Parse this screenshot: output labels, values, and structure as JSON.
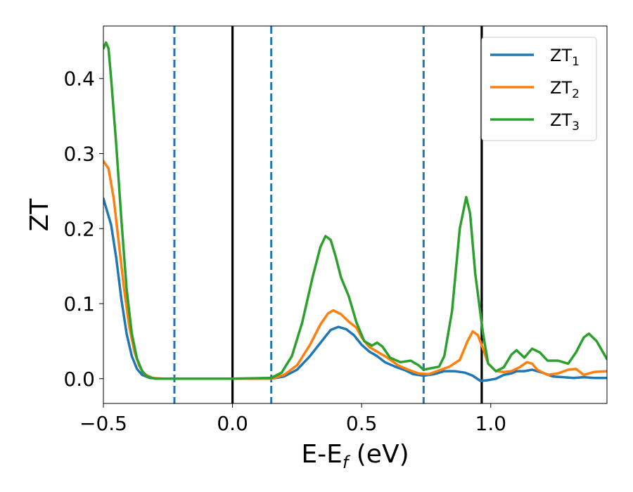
{
  "chart_data": {
    "type": "line",
    "title": "",
    "xlabel_main": "E-E",
    "xlabel_sub": "f",
    "xlabel_unit": " (eV)",
    "ylabel": "ZT",
    "xlim": [
      -0.5,
      1.45
    ],
    "ylim": [
      -0.033,
      0.47
    ],
    "x_ticks": [
      -0.5,
      0.0,
      0.5,
      1.0
    ],
    "x_tick_labels": [
      "−0.5",
      "0.0",
      "0.5",
      "1.0"
    ],
    "y_ticks": [
      0.0,
      0.1,
      0.2,
      0.3,
      0.4
    ],
    "y_tick_labels": [
      "0.0",
      "0.1",
      "0.2",
      "0.3",
      "0.4"
    ],
    "grid": false,
    "legend_position": "top-right",
    "vertical_lines": [
      {
        "x": -0.225,
        "style": "dashed",
        "color": "#1f77b4"
      },
      {
        "x": 0.0,
        "style": "solid",
        "color": "#000000"
      },
      {
        "x": 0.15,
        "style": "dashed",
        "color": "#1f77b4"
      },
      {
        "x": 0.74,
        "style": "dashed",
        "color": "#1f77b4"
      },
      {
        "x": 0.965,
        "style": "solid",
        "color": "#000000"
      }
    ],
    "series": [
      {
        "name_main": "ZT",
        "name_sub": "1",
        "color": "#1f77b4",
        "points": [
          [
            -0.5,
            0.24
          ],
          [
            -0.47,
            0.205
          ],
          [
            -0.45,
            0.16
          ],
          [
            -0.43,
            0.105
          ],
          [
            -0.41,
            0.06
          ],
          [
            -0.39,
            0.03
          ],
          [
            -0.37,
            0.013
          ],
          [
            -0.35,
            0.005
          ],
          [
            -0.32,
            0.001
          ],
          [
            -0.28,
            0.0
          ],
          [
            0.0,
            0.0
          ],
          [
            0.15,
            0.0
          ],
          [
            0.2,
            0.003
          ],
          [
            0.25,
            0.012
          ],
          [
            0.3,
            0.03
          ],
          [
            0.35,
            0.052
          ],
          [
            0.38,
            0.065
          ],
          [
            0.41,
            0.069
          ],
          [
            0.44,
            0.066
          ],
          [
            0.47,
            0.058
          ],
          [
            0.5,
            0.045
          ],
          [
            0.53,
            0.036
          ],
          [
            0.56,
            0.03
          ],
          [
            0.59,
            0.022
          ],
          [
            0.63,
            0.016
          ],
          [
            0.67,
            0.011
          ],
          [
            0.7,
            0.006
          ],
          [
            0.74,
            0.004
          ],
          [
            0.78,
            0.006
          ],
          [
            0.82,
            0.01
          ],
          [
            0.86,
            0.01
          ],
          [
            0.9,
            0.008
          ],
          [
            0.93,
            0.004
          ],
          [
            0.96,
            -0.003
          ],
          [
            0.99,
            -0.002
          ],
          [
            1.02,
            0.0
          ],
          [
            1.05,
            0.005
          ],
          [
            1.08,
            0.007
          ],
          [
            1.1,
            0.01
          ],
          [
            1.13,
            0.01
          ],
          [
            1.16,
            0.012
          ],
          [
            1.2,
            0.008
          ],
          [
            1.24,
            0.003
          ],
          [
            1.28,
            0.002
          ],
          [
            1.32,
            0.001
          ],
          [
            1.36,
            0.002
          ],
          [
            1.4,
            0.001
          ],
          [
            1.45,
            0.001
          ]
        ]
      },
      {
        "name_main": "ZT",
        "name_sub": "2",
        "color": "#ff7f0e",
        "points": [
          [
            -0.5,
            0.29
          ],
          [
            -0.48,
            0.28
          ],
          [
            -0.46,
            0.24
          ],
          [
            -0.44,
            0.18
          ],
          [
            -0.42,
            0.12
          ],
          [
            -0.4,
            0.07
          ],
          [
            -0.38,
            0.036
          ],
          [
            -0.36,
            0.016
          ],
          [
            -0.34,
            0.006
          ],
          [
            -0.31,
            0.001
          ],
          [
            -0.27,
            0.0
          ],
          [
            0.0,
            0.0
          ],
          [
            0.15,
            0.0
          ],
          [
            0.2,
            0.005
          ],
          [
            0.25,
            0.018
          ],
          [
            0.3,
            0.045
          ],
          [
            0.34,
            0.072
          ],
          [
            0.37,
            0.087
          ],
          [
            0.39,
            0.091
          ],
          [
            0.42,
            0.086
          ],
          [
            0.45,
            0.076
          ],
          [
            0.48,
            0.068
          ],
          [
            0.5,
            0.055
          ],
          [
            0.53,
            0.042
          ],
          [
            0.56,
            0.036
          ],
          [
            0.6,
            0.028
          ],
          [
            0.64,
            0.018
          ],
          [
            0.68,
            0.012
          ],
          [
            0.72,
            0.007
          ],
          [
            0.76,
            0.006
          ],
          [
            0.8,
            0.011
          ],
          [
            0.84,
            0.016
          ],
          [
            0.88,
            0.025
          ],
          [
            0.91,
            0.05
          ],
          [
            0.93,
            0.063
          ],
          [
            0.95,
            0.058
          ],
          [
            0.97,
            0.04
          ],
          [
            0.99,
            0.02
          ],
          [
            1.02,
            0.01
          ],
          [
            1.05,
            0.009
          ],
          [
            1.08,
            0.01
          ],
          [
            1.11,
            0.015
          ],
          [
            1.14,
            0.022
          ],
          [
            1.16,
            0.02
          ],
          [
            1.18,
            0.012
          ],
          [
            1.22,
            0.005
          ],
          [
            1.26,
            0.007
          ],
          [
            1.3,
            0.012
          ],
          [
            1.33,
            0.013
          ],
          [
            1.36,
            0.005
          ],
          [
            1.4,
            0.009
          ],
          [
            1.45,
            0.01
          ]
        ]
      },
      {
        "name_main": "ZT",
        "name_sub": "3",
        "color": "#2ca02c",
        "points": [
          [
            -0.5,
            0.44
          ],
          [
            -0.49,
            0.448
          ],
          [
            -0.48,
            0.44
          ],
          [
            -0.47,
            0.4
          ],
          [
            -0.45,
            0.31
          ],
          [
            -0.43,
            0.21
          ],
          [
            -0.41,
            0.12
          ],
          [
            -0.39,
            0.06
          ],
          [
            -0.37,
            0.027
          ],
          [
            -0.35,
            0.01
          ],
          [
            -0.33,
            0.003
          ],
          [
            -0.3,
            0.0
          ],
          [
            0.0,
            0.0
          ],
          [
            0.15,
            0.001
          ],
          [
            0.19,
            0.008
          ],
          [
            0.23,
            0.03
          ],
          [
            0.27,
            0.075
          ],
          [
            0.31,
            0.135
          ],
          [
            0.34,
            0.175
          ],
          [
            0.36,
            0.19
          ],
          [
            0.38,
            0.185
          ],
          [
            0.4,
            0.162
          ],
          [
            0.42,
            0.135
          ],
          [
            0.45,
            0.11
          ],
          [
            0.48,
            0.075
          ],
          [
            0.51,
            0.05
          ],
          [
            0.54,
            0.044
          ],
          [
            0.56,
            0.048
          ],
          [
            0.58,
            0.043
          ],
          [
            0.61,
            0.028
          ],
          [
            0.65,
            0.022
          ],
          [
            0.69,
            0.024
          ],
          [
            0.72,
            0.018
          ],
          [
            0.74,
            0.012
          ],
          [
            0.77,
            0.014
          ],
          [
            0.8,
            0.016
          ],
          [
            0.82,
            0.03
          ],
          [
            0.85,
            0.09
          ],
          [
            0.88,
            0.2
          ],
          [
            0.905,
            0.242
          ],
          [
            0.92,
            0.22
          ],
          [
            0.94,
            0.14
          ],
          [
            0.97,
            0.06
          ],
          [
            0.99,
            0.02
          ],
          [
            1.02,
            0.01
          ],
          [
            1.05,
            0.015
          ],
          [
            1.08,
            0.032
          ],
          [
            1.1,
            0.038
          ],
          [
            1.13,
            0.028
          ],
          [
            1.16,
            0.04
          ],
          [
            1.19,
            0.035
          ],
          [
            1.22,
            0.024
          ],
          [
            1.26,
            0.024
          ],
          [
            1.3,
            0.02
          ],
          [
            1.33,
            0.035
          ],
          [
            1.36,
            0.055
          ],
          [
            1.38,
            0.06
          ],
          [
            1.41,
            0.05
          ],
          [
            1.45,
            0.026
          ]
        ]
      }
    ]
  }
}
